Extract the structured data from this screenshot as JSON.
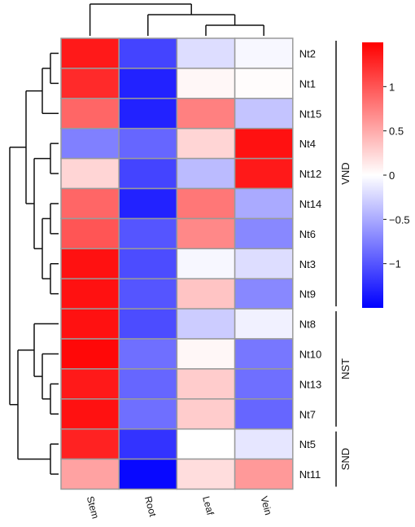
{
  "chart_data": {
    "type": "heatmap",
    "columns": [
      "Stem",
      "Root",
      "Leaf",
      "Vein"
    ],
    "rows": [
      "Nt2",
      "Nt1",
      "Nt15",
      "Nt4",
      "Nt12",
      "Nt14",
      "Nt6",
      "Nt3",
      "Nt9",
      "Nt8",
      "Nt10",
      "Nt13",
      "Nt7",
      "Nt5",
      "Nt11"
    ],
    "values": [
      [
        1.35,
        -1.1,
        -0.2,
        -0.05
      ],
      [
        1.25,
        -1.3,
        0.05,
        0.02
      ],
      [
        0.9,
        -1.3,
        0.75,
        -0.35
      ],
      [
        -0.75,
        -0.9,
        0.25,
        1.4
      ],
      [
        0.25,
        -1.1,
        -0.4,
        1.35
      ],
      [
        0.9,
        -1.3,
        0.8,
        -0.5
      ],
      [
        1.0,
        -1.0,
        0.7,
        -0.7
      ],
      [
        1.4,
        -1.05,
        -0.05,
        -0.2
      ],
      [
        1.4,
        -1.0,
        0.35,
        -0.7
      ],
      [
        1.4,
        -1.05,
        -0.3,
        -0.08
      ],
      [
        1.45,
        -0.85,
        0.05,
        -0.8
      ],
      [
        1.35,
        -0.9,
        0.3,
        -0.85
      ],
      [
        1.4,
        -0.85,
        0.3,
        -0.9
      ],
      [
        1.3,
        -1.2,
        0.0,
        -0.15
      ],
      [
        0.55,
        -1.45,
        0.2,
        0.6
      ]
    ],
    "color_scale": {
      "low": "#0000ff",
      "mid": "#ffffff",
      "high": "#ff0000",
      "range": [
        -1.5,
        1.5
      ]
    },
    "colorbar_ticks": [
      {
        "value": 1,
        "label": "1"
      },
      {
        "value": 0.5,
        "label": "0.5"
      },
      {
        "value": 0,
        "label": "0"
      },
      {
        "value": -0.5,
        "label": "−0.5"
      },
      {
        "value": -1,
        "label": "−1"
      }
    ],
    "row_groups": [
      {
        "label": "VND",
        "rows": [
          "Nt2",
          "Nt1",
          "Nt15",
          "Nt4",
          "Nt12",
          "Nt14",
          "Nt6",
          "Nt3",
          "Nt9"
        ]
      },
      {
        "label": "NST",
        "rows": [
          "Nt8",
          "Nt10",
          "Nt13",
          "Nt7"
        ]
      },
      {
        "label": "SND",
        "rows": [
          "Nt5",
          "Nt11"
        ]
      }
    ],
    "column_dendrogram": "(Stem,(Root,(Leaf,Vein)))",
    "row_dendrogram": "(((Nt2,Nt1),Nt15),((Nt4,Nt12),((Nt14,Nt6),(Nt3,Nt9)))),(((Nt8,(Nt10,(Nt13,Nt7)))),(Nt5,Nt11))"
  }
}
